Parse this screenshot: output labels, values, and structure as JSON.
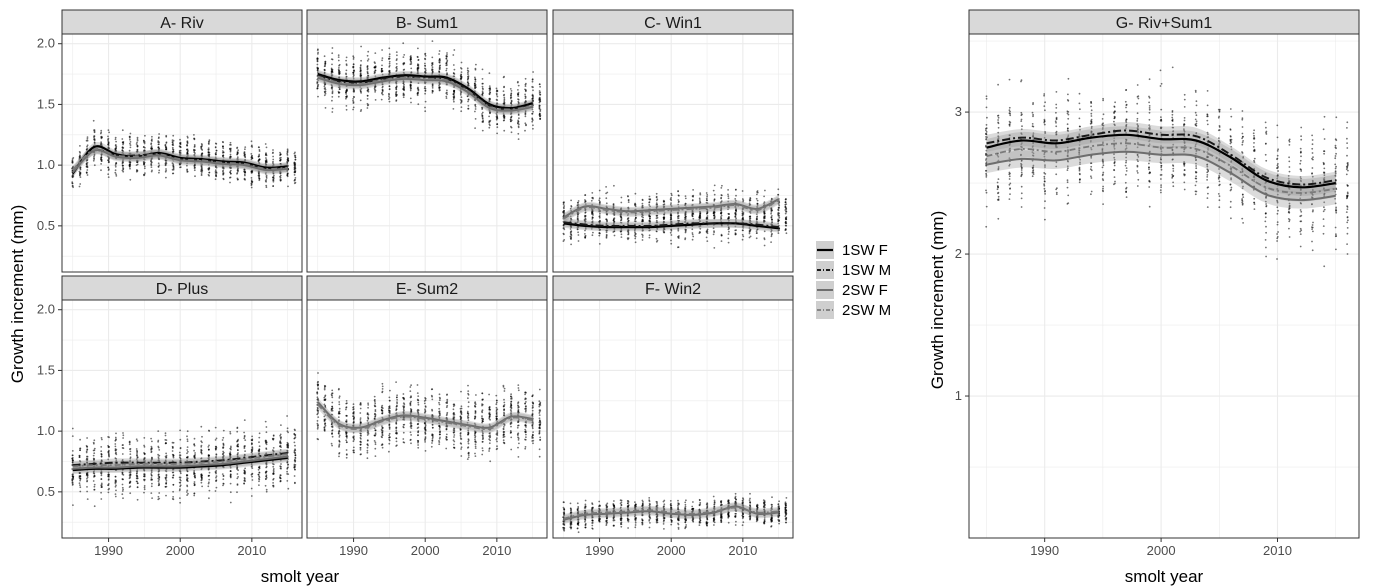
{
  "chart_data": {
    "type": "line",
    "series_names": [
      "1SW F",
      "1SW M",
      "2SW F",
      "2SW M"
    ],
    "legend": {
      "placement": "center-right",
      "entries": [
        "1SW F",
        "1SW M",
        "2SW F",
        "2SW M"
      ]
    },
    "style": {
      "panel_border": "#333333",
      "strip_fill": "#d9d9d9",
      "grid": "#ebebeb",
      "point_color": "#000000",
      "ribbon": "#999999"
    },
    "facets": {
      "xlabel": "smolt year",
      "ylabel": "Growth increment (mm)",
      "xlim": [
        1983.5,
        2017
      ],
      "x_ticks": [
        1990,
        2000,
        2010
      ],
      "x_tick_labels": [
        "1990",
        "2000",
        "2010"
      ],
      "ylim": [
        0.12,
        2.08
      ],
      "y_ticks": [
        0.5,
        1.0,
        1.5,
        2.0
      ],
      "y_tick_labels": [
        "0.5",
        "1.0",
        "1.5",
        "2.0"
      ],
      "panels": [
        {
          "title": "A- Riv",
          "x": [
            1985,
            1988,
            1991,
            1994,
            1997,
            2000,
            2003,
            2006,
            2009,
            2012,
            2015
          ],
          "series": [
            {
              "name": "1SW F",
              "values": [
                0.93,
                1.15,
                1.09,
                1.07,
                1.1,
                1.06,
                1.05,
                1.03,
                1.02,
                0.98,
                0.99
              ]
            },
            {
              "name": "1SW M",
              "values": [
                0.95,
                1.12,
                1.08,
                1.08,
                1.09,
                1.05,
                1.04,
                1.02,
                1.01,
                0.97,
                0.98
              ]
            },
            {
              "name": "2SW F",
              "values": [
                0.94,
                1.12,
                1.07,
                1.06,
                1.08,
                1.04,
                1.03,
                1.01,
                1.0,
                0.96,
                0.97
              ]
            },
            {
              "name": "2SW M",
              "values": [
                0.96,
                1.13,
                1.08,
                1.07,
                1.09,
                1.05,
                1.04,
                1.02,
                1.01,
                0.97,
                0.98
              ]
            }
          ],
          "scatter": {
            "center": [
              0.93,
              1.15,
              1.09,
              1.07,
              1.1,
              1.06,
              1.05,
              1.03,
              1.02,
              0.98,
              0.99
            ],
            "spread": 0.18
          }
        },
        {
          "title": "B- Sum1",
          "x": [
            1985,
            1988,
            1991,
            1994,
            1997,
            2000,
            2003,
            2006,
            2009,
            2012,
            2015
          ],
          "series": [
            {
              "name": "1SW F",
              "values": [
                1.75,
                1.7,
                1.69,
                1.72,
                1.74,
                1.73,
                1.72,
                1.63,
                1.5,
                1.47,
                1.51
              ]
            },
            {
              "name": "1SW M",
              "values": [
                1.74,
                1.69,
                1.68,
                1.71,
                1.73,
                1.72,
                1.71,
                1.62,
                1.49,
                1.46,
                1.5
              ]
            },
            {
              "name": "2SW F",
              "values": [
                1.72,
                1.67,
                1.66,
                1.69,
                1.71,
                1.7,
                1.69,
                1.6,
                1.47,
                1.45,
                1.48
              ]
            },
            {
              "name": "2SW M",
              "values": [
                1.73,
                1.68,
                1.67,
                1.7,
                1.72,
                1.71,
                1.7,
                1.61,
                1.48,
                1.46,
                1.49
              ]
            }
          ],
          "scatter": {
            "center": [
              1.75,
              1.7,
              1.69,
              1.72,
              1.74,
              1.73,
              1.72,
              1.63,
              1.5,
              1.47,
              1.51
            ],
            "spread": 0.24
          }
        },
        {
          "title": "C- Win1",
          "x": [
            1985,
            1988,
            1991,
            1994,
            1997,
            2000,
            2003,
            2006,
            2009,
            2012,
            2015
          ],
          "series": [
            {
              "name": "1SW F",
              "values": [
                0.52,
                0.5,
                0.49,
                0.49,
                0.49,
                0.5,
                0.51,
                0.52,
                0.52,
                0.5,
                0.48
              ]
            },
            {
              "name": "1SW M",
              "values": [
                0.53,
                0.51,
                0.5,
                0.5,
                0.5,
                0.51,
                0.52,
                0.52,
                0.52,
                0.51,
                0.49
              ]
            },
            {
              "name": "2SW F",
              "values": [
                0.57,
                0.66,
                0.64,
                0.62,
                0.63,
                0.64,
                0.65,
                0.66,
                0.68,
                0.64,
                0.72
              ]
            },
            {
              "name": "2SW M",
              "values": [
                0.56,
                0.65,
                0.63,
                0.61,
                0.62,
                0.63,
                0.64,
                0.65,
                0.67,
                0.63,
                0.71
              ]
            }
          ],
          "scatter": {
            "center": [
              0.55,
              0.58,
              0.57,
              0.56,
              0.56,
              0.57,
              0.58,
              0.59,
              0.6,
              0.57,
              0.6
            ],
            "spread": 0.22
          }
        },
        {
          "title": "D- Plus",
          "x": [
            1985,
            1988,
            1991,
            1994,
            1997,
            2000,
            2003,
            2006,
            2009,
            2012,
            2015
          ],
          "series": [
            {
              "name": "1SW F",
              "values": [
                0.68,
                0.69,
                0.69,
                0.7,
                0.7,
                0.7,
                0.71,
                0.72,
                0.74,
                0.76,
                0.78
              ]
            },
            {
              "name": "1SW M",
              "values": [
                0.72,
                0.73,
                0.74,
                0.74,
                0.74,
                0.74,
                0.75,
                0.76,
                0.78,
                0.8,
                0.82
              ]
            },
            {
              "name": "2SW F",
              "values": [
                0.69,
                0.7,
                0.7,
                0.71,
                0.71,
                0.71,
                0.72,
                0.73,
                0.75,
                0.77,
                0.79
              ]
            },
            {
              "name": "2SW M",
              "values": [
                0.71,
                0.72,
                0.72,
                0.73,
                0.73,
                0.73,
                0.74,
                0.75,
                0.77,
                0.79,
                0.81
              ]
            }
          ],
          "scatter": {
            "center": [
              0.7,
              0.71,
              0.72,
              0.72,
              0.72,
              0.72,
              0.73,
              0.74,
              0.76,
              0.78,
              0.8
            ],
            "spread": 0.28
          }
        },
        {
          "title": "E- Sum2",
          "x": [
            1985,
            1988,
            1991,
            1994,
            1997,
            2000,
            2003,
            2006,
            2009,
            2012,
            2015
          ],
          "series": [
            {
              "name": "2SW F",
              "values": [
                1.24,
                1.06,
                1.03,
                1.09,
                1.13,
                1.11,
                1.08,
                1.05,
                1.03,
                1.12,
                1.1
              ]
            },
            {
              "name": "2SW M",
              "values": [
                1.22,
                1.05,
                1.02,
                1.08,
                1.12,
                1.1,
                1.07,
                1.04,
                1.02,
                1.11,
                1.09
              ]
            }
          ],
          "scatter": {
            "center": [
              1.23,
              1.06,
              1.03,
              1.09,
              1.13,
              1.11,
              1.08,
              1.05,
              1.03,
              1.12,
              1.1
            ],
            "spread": 0.28
          }
        },
        {
          "title": "F- Win2",
          "x": [
            1985,
            1988,
            1991,
            1994,
            1997,
            2000,
            2003,
            2006,
            2009,
            2012,
            2015
          ],
          "series": [
            {
              "name": "2SW F",
              "values": [
                0.27,
                0.31,
                0.32,
                0.33,
                0.34,
                0.32,
                0.31,
                0.33,
                0.38,
                0.32,
                0.33
              ]
            },
            {
              "name": "2SW M",
              "values": [
                0.28,
                0.32,
                0.33,
                0.34,
                0.35,
                0.33,
                0.32,
                0.34,
                0.37,
                0.33,
                0.34
              ]
            }
          ],
          "scatter": {
            "center": [
              0.28,
              0.31,
              0.32,
              0.33,
              0.34,
              0.32,
              0.31,
              0.33,
              0.37,
              0.32,
              0.33
            ],
            "spread": 0.12
          }
        }
      ]
    },
    "big_panel": {
      "title": "G- Riv+Sum1",
      "xlabel": "smolt year",
      "ylabel": "Growth increment (mm)",
      "xlim": [
        1983.5,
        2017
      ],
      "x_ticks": [
        1990,
        2000,
        2010
      ],
      "x_tick_labels": [
        "1990",
        "2000",
        "2010"
      ],
      "ylim": [
        0.0,
        3.55
      ],
      "y_ticks": [
        1,
        2,
        3
      ],
      "y_tick_labels": [
        "1",
        "2",
        "3"
      ],
      "x": [
        1985,
        1988,
        1991,
        1994,
        1997,
        2000,
        2003,
        2006,
        2009,
        2012,
        2015
      ],
      "series": [
        {
          "name": "1SW F",
          "values": [
            2.75,
            2.8,
            2.78,
            2.82,
            2.84,
            2.81,
            2.8,
            2.68,
            2.52,
            2.47,
            2.5
          ]
        },
        {
          "name": "1SW M",
          "values": [
            2.78,
            2.82,
            2.8,
            2.84,
            2.87,
            2.84,
            2.83,
            2.7,
            2.54,
            2.49,
            2.52
          ]
        },
        {
          "name": "2SW F",
          "values": [
            2.63,
            2.67,
            2.66,
            2.7,
            2.72,
            2.7,
            2.69,
            2.57,
            2.42,
            2.38,
            2.41
          ]
        },
        {
          "name": "2SW M",
          "values": [
            2.69,
            2.74,
            2.72,
            2.76,
            2.78,
            2.75,
            2.74,
            2.62,
            2.47,
            2.43,
            2.46
          ]
        }
      ],
      "scatter": {
        "center": [
          2.72,
          2.76,
          2.74,
          2.78,
          2.8,
          2.78,
          2.77,
          2.65,
          2.49,
          2.45,
          2.48
        ],
        "spread": 0.45
      }
    }
  }
}
